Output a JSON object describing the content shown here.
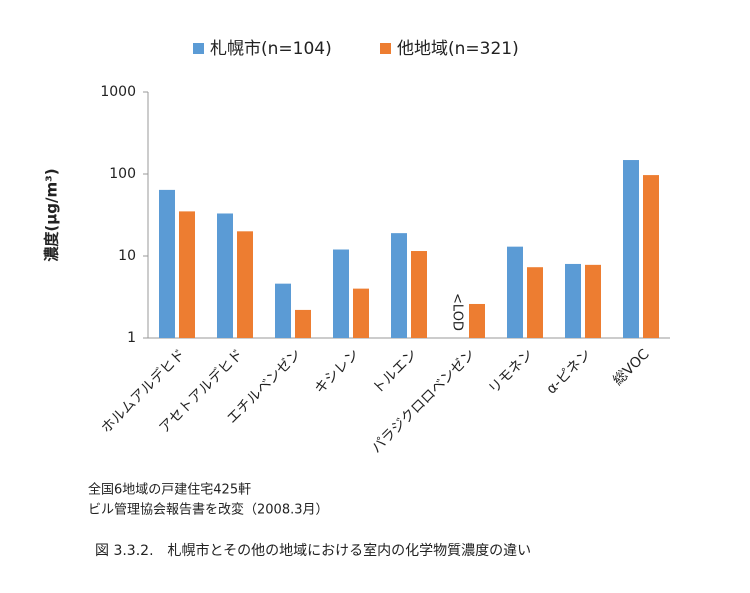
{
  "chart_data": {
    "type": "bar",
    "y_label": "濃度(μg/m³)",
    "categories": [
      "ホルムアルデヒド",
      "アセトアルデヒド",
      "エチルベンゼン",
      "キシレン",
      "トルエン",
      "パラジクロロベンゼン",
      "リモネン",
      "α-ピネン",
      "総VOC"
    ],
    "series": [
      {
        "name": "札幌市(n=104)",
        "color": "#5b9bd5",
        "values": [
          64,
          33,
          4.6,
          12,
          19,
          null,
          13,
          8.0,
          148
        ]
      },
      {
        "name": "他地域(n=321)",
        "color": "#ed7d31",
        "values": [
          35,
          20,
          2.2,
          4.0,
          11.5,
          2.6,
          7.3,
          7.8,
          97
        ]
      }
    ],
    "annotations": [
      "<LOD"
    ],
    "ylim": [
      1,
      1000
    ],
    "yticks": [
      1,
      10,
      100,
      1000
    ],
    "log_scale": true,
    "grid": false,
    "legend": "top"
  },
  "notes": [
    "全国6地域の戸建住宅425軒",
    "ビル管理協会報告書を改変（2008.3月）"
  ],
  "caption": "図 3.3.2.　札幌市とその他の地域における室内の化学物質濃度の違い"
}
